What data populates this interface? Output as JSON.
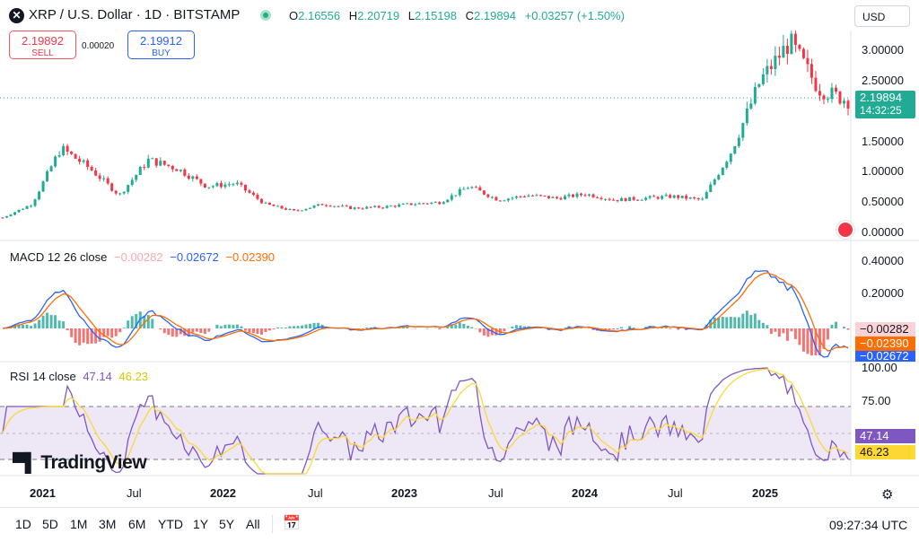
{
  "header": {
    "symbol_icon": "x-icon",
    "title": "XRP / U.S. Dollar · 1D · BITSTAMP",
    "ohlc": {
      "o_key": "O",
      "o_val": "2.16556",
      "h_key": "H",
      "h_val": "2.20719",
      "l_key": "L",
      "l_val": "2.15198",
      "c_key": "C",
      "c_val": "2.19894",
      "change": "+0.03257 (+1.50%)"
    },
    "currency": "USD"
  },
  "trade": {
    "sell_price": "2.19892",
    "sell_label": "SELL",
    "spread": "0.00020",
    "buy_price": "2.19912",
    "buy_label": "BUY"
  },
  "price_axis": [
    "3.00000",
    "2.50000",
    "2.00000",
    "1.50000",
    "1.00000",
    "0.50000",
    "0.00000"
  ],
  "price_tag": {
    "price": "2.19894",
    "countdown": "14:32:25"
  },
  "macd": {
    "label": "MACD 12 26 close",
    "hist": "−0.00282",
    "macd": "−0.02672",
    "signal": "−0.02390",
    "axis": [
      "0.40000",
      "0.20000"
    ],
    "tags": [
      "−0.00282",
      "−0.02390",
      "−0.02672"
    ]
  },
  "rsi": {
    "label": "RSI 14 close",
    "rsi": "47.14",
    "ma": "46.23",
    "axis": [
      "100.00",
      "75.00"
    ],
    "tags": [
      "47.14",
      "46.23"
    ]
  },
  "time_axis": [
    "2021",
    "Jul",
    "2022",
    "Jul",
    "2023",
    "Jul",
    "2024",
    "Jul",
    "2025"
  ],
  "branding": "TradingView",
  "timeframes": [
    "1D",
    "5D",
    "1M",
    "3M",
    "6M",
    "YTD",
    "1Y",
    "5Y",
    "All"
  ],
  "clock": "09:27:34 UTC",
  "colors": {
    "up": "#22ab94",
    "down": "#f23645",
    "macd": "#2962ff",
    "signal": "#ff6d00",
    "rsi": "#7e57c2",
    "rsi_ma": "#fdd835",
    "rsi_band": "#ede7f6"
  },
  "chart_data": {
    "type": "candlestick",
    "x": [
      "2021-01",
      "2021-03",
      "2021-04",
      "2021-05",
      "2021-07",
      "2021-09",
      "2021-11",
      "2022-01",
      "2022-03",
      "2022-05",
      "2022-07",
      "2022-09",
      "2022-11",
      "2023-01",
      "2023-03",
      "2023-05",
      "2023-07",
      "2023-09",
      "2023-11",
      "2024-01",
      "2024-03",
      "2024-05",
      "2024-07",
      "2024-09",
      "2024-10",
      "2024-11",
      "2024-12",
      "2025-01",
      "2025-02",
      "2025-03"
    ],
    "close": [
      0.22,
      0.45,
      1.4,
      1.05,
      0.6,
      1.2,
      1.05,
      0.75,
      0.8,
      0.45,
      0.33,
      0.45,
      0.38,
      0.4,
      0.45,
      0.48,
      0.75,
      0.52,
      0.6,
      0.55,
      0.62,
      0.52,
      0.55,
      0.58,
      0.52,
      1.35,
      2.55,
      3.2,
      2.4,
      2.2
    ],
    "ylim": [
      0,
      3.3
    ],
    "macd_ylim": [
      -0.1,
      0.45
    ],
    "rsi_ylim": [
      20,
      100
    ],
    "rsi_bands": [
      70,
      30
    ]
  }
}
